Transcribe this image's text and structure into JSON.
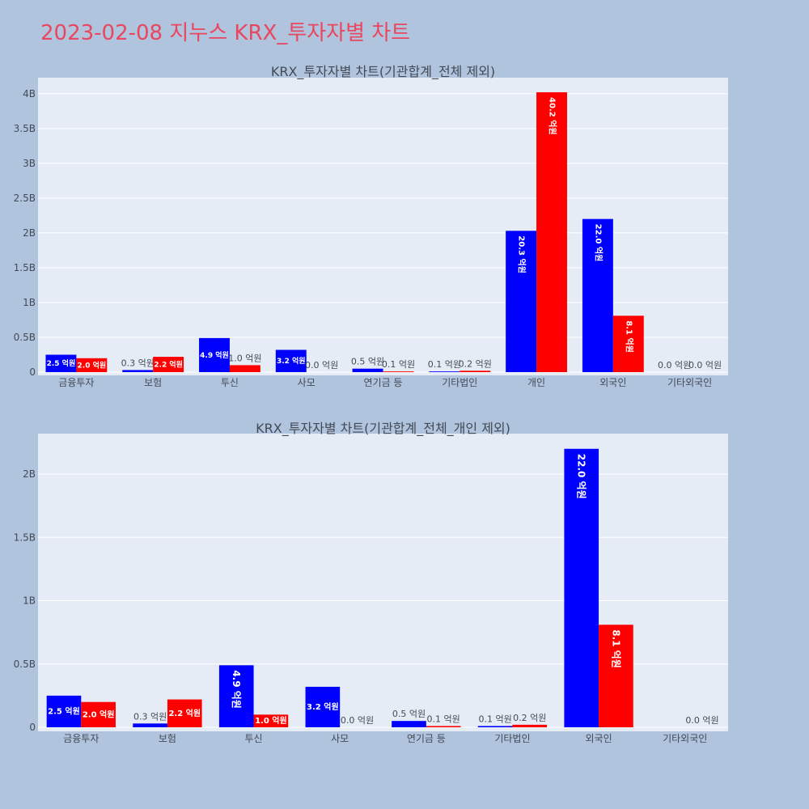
{
  "page_title": "2023-02-08 지누스 KRX_투자자별 차트",
  "colors": {
    "background": "#b0c4de",
    "plot_bg": "#e5ecf6",
    "buy": "#0000ff",
    "sell": "#ff0000",
    "title": "#e8475f"
  },
  "chart_data": [
    {
      "type": "bar",
      "title": "KRX_투자자별 차트(기관합계_전체 제외)",
      "categories": [
        "금융투자",
        "보험",
        "투신",
        "사모",
        "연기금 등",
        "기타법인",
        "개인",
        "외국인",
        "기타외국인"
      ],
      "series": [
        {
          "values": [
            250000000,
            30000000,
            490000000,
            320000000,
            50000000,
            10000000,
            2030000000,
            2200000000,
            0
          ],
          "labels": [
            "2.5 억원",
            "0.3 억원",
            "4.9 억원",
            "3.2 억원",
            "0.5 억원",
            "0.1 억원",
            "20.3 억원",
            "22.0 억원",
            "0.0 억원"
          ],
          "color": "#0000ff"
        },
        {
          "values": [
            200000000,
            220000000,
            100000000,
            0,
            10000000,
            20000000,
            4020000000,
            810000000,
            0
          ],
          "labels": [
            "2.0 억원",
            "2.2 억원",
            "1.0 억원",
            "0.0 억원",
            "0.1 억원",
            "0.2 억원",
            "40.2 억원",
            "8.1 억원",
            "0.0 억원"
          ],
          "color": "#ff0000"
        }
      ],
      "yticks": [
        0,
        500000000,
        1000000000,
        1500000000,
        2000000000,
        2500000000,
        3000000000,
        3500000000,
        4000000000
      ],
      "ytick_labels": [
        "0",
        "0.5B",
        "1B",
        "1.5B",
        "2B",
        "2.5B",
        "3B",
        "3.5B",
        "4B"
      ],
      "ylim": [
        0,
        4230000000
      ],
      "grid": true
    },
    {
      "type": "bar",
      "title": "KRX_투자자별 차트(기관합계_전체_개인 제외)",
      "categories": [
        "금융투자",
        "보험",
        "투신",
        "사모",
        "연기금 등",
        "기타법인",
        "외국인",
        "기타외국인"
      ],
      "series": [
        {
          "values": [
            250000000,
            30000000,
            490000000,
            320000000,
            50000000,
            10000000,
            2200000000,
            0
          ],
          "labels": [
            "2.5 억원",
            "0.3 억원",
            "4.9 억원",
            "3.2 억원",
            "0.5 억원",
            "0.1 억원",
            "22.0 억원",
            ""
          ],
          "color": "#0000ff"
        },
        {
          "values": [
            200000000,
            220000000,
            100000000,
            0,
            10000000,
            20000000,
            810000000,
            0
          ],
          "labels": [
            "2.0 억원",
            "2.2 억원",
            "1.0 억원",
            "0.0 억원",
            "0.1 억원",
            "0.2 억원",
            "8.1 억원",
            "0.0 억원"
          ],
          "color": "#ff0000"
        }
      ],
      "yticks": [
        0,
        500000000,
        1000000000,
        1500000000,
        2000000000
      ],
      "ytick_labels": [
        "0",
        "0.5B",
        "1B",
        "1.5B",
        "2B"
      ],
      "ylim": [
        0,
        2320000000
      ],
      "grid": true
    }
  ]
}
